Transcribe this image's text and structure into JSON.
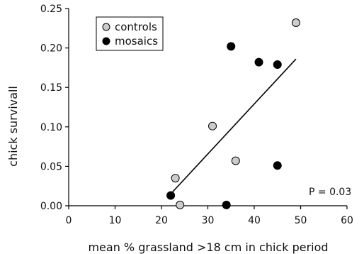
{
  "chart_data": {
    "type": "scatter",
    "title": "",
    "xlabel": "mean % grassland >18 cm in chick period",
    "ylabel": "chick survivall",
    "xlim": [
      0,
      60
    ],
    "ylim": [
      0,
      0.25
    ],
    "x_ticks": [
      0,
      10,
      20,
      30,
      40,
      50,
      60
    ],
    "x_tick_labels": [
      "0",
      "10",
      "20",
      "30",
      "40",
      "50",
      "60"
    ],
    "y_ticks": [
      0,
      0.05,
      0.1,
      0.15,
      0.2,
      0.25
    ],
    "y_tick_labels": [
      "0.00",
      "0.05",
      "0.10",
      "0.15",
      "0.20",
      "0.25"
    ],
    "grid": false,
    "legend_placement": "top-left",
    "series": [
      {
        "name": "controls",
        "color": "#cccccc",
        "points": [
          {
            "x": 23,
            "y": 0.035
          },
          {
            "x": 24,
            "y": 0.001
          },
          {
            "x": 31,
            "y": 0.101
          },
          {
            "x": 36,
            "y": 0.057
          },
          {
            "x": 49,
            "y": 0.232
          }
        ]
      },
      {
        "name": "mosaics",
        "color": "#000000",
        "points": [
          {
            "x": 22,
            "y": 0.013
          },
          {
            "x": 34,
            "y": 0.001
          },
          {
            "x": 35,
            "y": 0.202
          },
          {
            "x": 41,
            "y": 0.182
          },
          {
            "x": 45,
            "y": 0.179
          },
          {
            "x": 45,
            "y": 0.051
          }
        ]
      }
    ],
    "trendline": {
      "x1": 22,
      "y1": 0.015,
      "x2": 49,
      "y2": 0.186
    },
    "annotation": "P = 0.03"
  }
}
